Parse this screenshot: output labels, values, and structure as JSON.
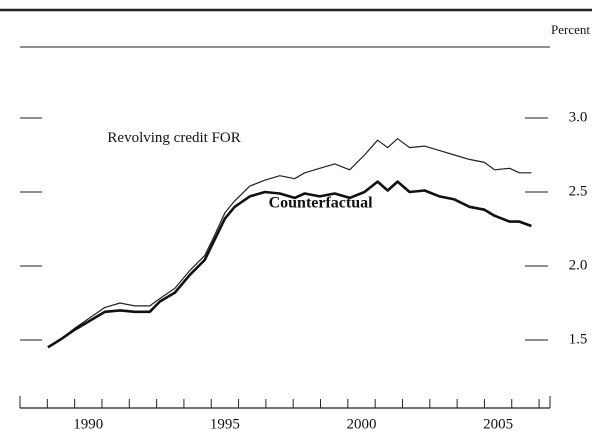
{
  "chart_data": {
    "type": "line",
    "unit_label": "Percent",
    "x": [
      1989.02,
      1989.46,
      1990.01,
      1990.56,
      1991.11,
      1991.66,
      1992.2,
      1992.75,
      1993.12,
      1993.67,
      1994.22,
      1994.76,
      1995.13,
      1995.5,
      1995.86,
      1996.41,
      1996.96,
      1997.51,
      1998.05,
      1998.42,
      1998.97,
      1999.52,
      2000.07,
      2000.61,
      2001.09,
      2001.46,
      2001.82,
      2002.26,
      2002.81,
      2003.36,
      2003.9,
      2004.45,
      2005.0,
      2005.37,
      2005.92,
      2006.28,
      2006.72
    ],
    "series": [
      {
        "name": "Revolving credit FOR",
        "color": "#222222",
        "values": [
          1.45,
          1.5,
          1.58,
          1.65,
          1.72,
          1.75,
          1.73,
          1.73,
          1.78,
          1.85,
          1.97,
          2.07,
          2.21,
          2.36,
          2.44,
          2.54,
          2.58,
          2.61,
          2.59,
          2.63,
          2.66,
          2.69,
          2.65,
          2.75,
          2.85,
          2.8,
          2.86,
          2.8,
          2.81,
          2.78,
          2.75,
          2.72,
          2.7,
          2.65,
          2.66,
          2.63,
          2.63
        ]
      },
      {
        "name": "Counterfactual",
        "color": "#111111",
        "values": [
          1.45,
          1.5,
          1.57,
          1.63,
          1.69,
          1.7,
          1.69,
          1.69,
          1.76,
          1.82,
          1.94,
          2.04,
          2.18,
          2.32,
          2.4,
          2.47,
          2.5,
          2.49,
          2.46,
          2.49,
          2.47,
          2.49,
          2.46,
          2.5,
          2.57,
          2.51,
          2.57,
          2.5,
          2.51,
          2.47,
          2.45,
          2.4,
          2.38,
          2.34,
          2.3,
          2.3,
          2.27
        ]
      }
    ],
    "xlim": [
      1988,
      2007.4
    ],
    "xticks": [
      1988,
      1989,
      1990,
      1991,
      1992,
      1993,
      1994,
      1995,
      1996,
      1997,
      1998,
      1999,
      2000,
      2001,
      2002,
      2003,
      2004,
      2005,
      2006,
      2007
    ],
    "xtick_labels": [
      {
        "value": 1990.5,
        "label": "1990"
      },
      {
        "value": 1995.5,
        "label": "1995"
      },
      {
        "value": 2000.5,
        "label": "2000"
      },
      {
        "value": 2005.5,
        "label": "2005"
      }
    ],
    "ylim": [
      1.04,
      3.48
    ],
    "yticks": [
      {
        "value": 1.5,
        "label": "1.5"
      },
      {
        "value": 2.0,
        "label": "2.0"
      },
      {
        "value": 2.5,
        "label": "2.5"
      },
      {
        "value": 3.0,
        "label": "3.0"
      }
    ],
    "series_labels_at": [
      {
        "x": 1991.2,
        "y": 2.86
      },
      {
        "x": 1997.1,
        "y": 2.42
      }
    ]
  }
}
